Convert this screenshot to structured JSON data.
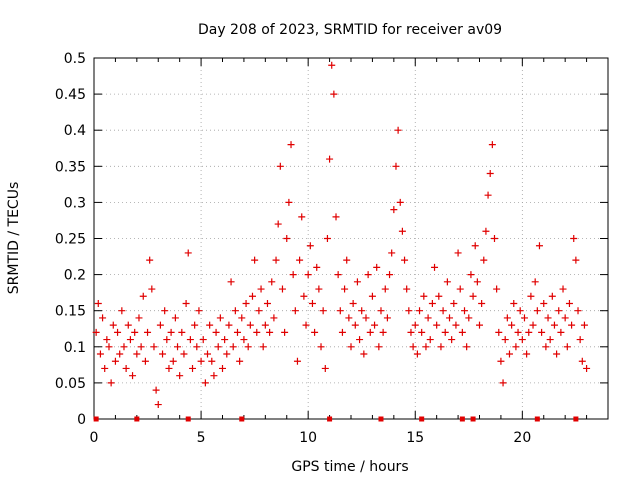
{
  "chart_data": {
    "type": "scatter",
    "title": "Day 208 of 2023, SRMTID for receiver av09",
    "xlabel": "GPS time / hours",
    "ylabel": "SRMTID / TECUs",
    "xlim": [
      0,
      24
    ],
    "ylim": [
      0,
      0.5
    ],
    "xticks": [
      0,
      5,
      10,
      15,
      20
    ],
    "xtick_labels": [
      "0",
      "5",
      "10",
      "15",
      "20"
    ],
    "yticks": [
      0,
      0.05,
      0.1,
      0.15,
      0.2,
      0.25,
      0.3,
      0.35,
      0.4,
      0.45,
      0.5
    ],
    "ytick_labels": [
      "0",
      "0.05",
      "0.1",
      "0.15",
      "0.2",
      "0.25",
      "0.3",
      "0.35",
      "0.4",
      "0.45",
      "0.5"
    ],
    "grid": true,
    "marker": "+",
    "color": "#e00000",
    "series": [
      {
        "name": "SRMTID",
        "points": [
          [
            0.1,
            0.12
          ],
          [
            0.2,
            0.16
          ],
          [
            0.3,
            0.09
          ],
          [
            0.4,
            0.14
          ],
          [
            0.5,
            0.07
          ],
          [
            0.6,
            0.11
          ],
          [
            0.7,
            0.1
          ],
          [
            0.8,
            0.05
          ],
          [
            0.9,
            0.13
          ],
          [
            1.0,
            0.08
          ],
          [
            1.1,
            0.12
          ],
          [
            1.2,
            0.09
          ],
          [
            1.3,
            0.15
          ],
          [
            1.4,
            0.1
          ],
          [
            1.5,
            0.07
          ],
          [
            1.6,
            0.13
          ],
          [
            1.7,
            0.11
          ],
          [
            1.8,
            0.06
          ],
          [
            1.9,
            0.12
          ],
          [
            2.0,
            0.09
          ],
          [
            2.1,
            0.14
          ],
          [
            2.2,
            0.1
          ],
          [
            2.3,
            0.17
          ],
          [
            2.4,
            0.08
          ],
          [
            2.5,
            0.12
          ],
          [
            2.6,
            0.22
          ],
          [
            2.7,
            0.18
          ],
          [
            2.8,
            0.1
          ],
          [
            2.9,
            0.04
          ],
          [
            3.0,
            0.02
          ],
          [
            3.1,
            0.13
          ],
          [
            3.2,
            0.09
          ],
          [
            3.3,
            0.15
          ],
          [
            3.4,
            0.11
          ],
          [
            3.5,
            0.07
          ],
          [
            3.6,
            0.12
          ],
          [
            3.7,
            0.08
          ],
          [
            3.8,
            0.14
          ],
          [
            3.9,
            0.1
          ],
          [
            4.0,
            0.06
          ],
          [
            4.1,
            0.12
          ],
          [
            4.2,
            0.09
          ],
          [
            4.3,
            0.16
          ],
          [
            4.4,
            0.23
          ],
          [
            4.5,
            0.11
          ],
          [
            4.6,
            0.07
          ],
          [
            4.7,
            0.13
          ],
          [
            4.8,
            0.1
          ],
          [
            4.9,
            0.15
          ],
          [
            5.0,
            0.08
          ],
          [
            5.1,
            0.11
          ],
          [
            5.2,
            0.05
          ],
          [
            5.3,
            0.09
          ],
          [
            5.4,
            0.13
          ],
          [
            5.5,
            0.08
          ],
          [
            5.6,
            0.06
          ],
          [
            5.7,
            0.12
          ],
          [
            5.8,
            0.1
          ],
          [
            5.9,
            0.14
          ],
          [
            6.0,
            0.07
          ],
          [
            6.1,
            0.11
          ],
          [
            6.2,
            0.09
          ],
          [
            6.3,
            0.13
          ],
          [
            6.4,
            0.19
          ],
          [
            6.5,
            0.1
          ],
          [
            6.6,
            0.15
          ],
          [
            6.7,
            0.12
          ],
          [
            6.8,
            0.08
          ],
          [
            6.9,
            0.14
          ],
          [
            7.0,
            0.11
          ],
          [
            7.1,
            0.16
          ],
          [
            7.2,
            0.1
          ],
          [
            7.3,
            0.13
          ],
          [
            7.4,
            0.17
          ],
          [
            7.5,
            0.22
          ],
          [
            7.6,
            0.12
          ],
          [
            7.7,
            0.15
          ],
          [
            7.8,
            0.18
          ],
          [
            7.9,
            0.1
          ],
          [
            8.0,
            0.13
          ],
          [
            8.1,
            0.16
          ],
          [
            8.2,
            0.12
          ],
          [
            8.3,
            0.19
          ],
          [
            8.4,
            0.14
          ],
          [
            8.5,
            0.22
          ],
          [
            8.6,
            0.27
          ],
          [
            8.7,
            0.35
          ],
          [
            8.8,
            0.18
          ],
          [
            8.9,
            0.12
          ],
          [
            9.0,
            0.25
          ],
          [
            9.1,
            0.3
          ],
          [
            9.2,
            0.38
          ],
          [
            9.3,
            0.2
          ],
          [
            9.4,
            0.15
          ],
          [
            9.5,
            0.08
          ],
          [
            9.6,
            0.22
          ],
          [
            9.7,
            0.28
          ],
          [
            9.8,
            0.17
          ],
          [
            9.9,
            0.13
          ],
          [
            10.0,
            0.2
          ],
          [
            10.1,
            0.24
          ],
          [
            10.2,
            0.16
          ],
          [
            10.3,
            0.12
          ],
          [
            10.4,
            0.21
          ],
          [
            10.5,
            0.18
          ],
          [
            10.6,
            0.1
          ],
          [
            10.7,
            0.15
          ],
          [
            10.8,
            0.07
          ],
          [
            10.9,
            0.25
          ],
          [
            11.0,
            0.36
          ],
          [
            11.1,
            0.49
          ],
          [
            11.2,
            0.45
          ],
          [
            11.3,
            0.28
          ],
          [
            11.4,
            0.2
          ],
          [
            11.5,
            0.15
          ],
          [
            11.6,
            0.12
          ],
          [
            11.7,
            0.18
          ],
          [
            11.8,
            0.22
          ],
          [
            11.9,
            0.14
          ],
          [
            12.0,
            0.1
          ],
          [
            12.1,
            0.16
          ],
          [
            12.2,
            0.13
          ],
          [
            12.3,
            0.19
          ],
          [
            12.4,
            0.11
          ],
          [
            12.5,
            0.15
          ],
          [
            12.6,
            0.09
          ],
          [
            12.7,
            0.14
          ],
          [
            12.8,
            0.2
          ],
          [
            12.9,
            0.12
          ],
          [
            13.0,
            0.17
          ],
          [
            13.1,
            0.13
          ],
          [
            13.2,
            0.21
          ],
          [
            13.3,
            0.1
          ],
          [
            13.4,
            0.15
          ],
          [
            13.5,
            0.12
          ],
          [
            13.6,
            0.18
          ],
          [
            13.7,
            0.14
          ],
          [
            13.8,
            0.2
          ],
          [
            13.9,
            0.23
          ],
          [
            14.0,
            0.29
          ],
          [
            14.1,
            0.35
          ],
          [
            14.2,
            0.4
          ],
          [
            14.3,
            0.3
          ],
          [
            14.4,
            0.26
          ],
          [
            14.5,
            0.22
          ],
          [
            14.6,
            0.18
          ],
          [
            14.7,
            0.15
          ],
          [
            14.8,
            0.12
          ],
          [
            14.9,
            0.1
          ],
          [
            15.0,
            0.13
          ],
          [
            15.1,
            0.09
          ],
          [
            15.2,
            0.15
          ],
          [
            15.3,
            0.12
          ],
          [
            15.4,
            0.17
          ],
          [
            15.5,
            0.1
          ],
          [
            15.6,
            0.14
          ],
          [
            15.7,
            0.11
          ],
          [
            15.8,
            0.16
          ],
          [
            15.9,
            0.21
          ],
          [
            16.0,
            0.13
          ],
          [
            16.1,
            0.17
          ],
          [
            16.2,
            0.1
          ],
          [
            16.3,
            0.15
          ],
          [
            16.4,
            0.12
          ],
          [
            16.5,
            0.19
          ],
          [
            16.6,
            0.14
          ],
          [
            16.7,
            0.11
          ],
          [
            16.8,
            0.16
          ],
          [
            16.9,
            0.13
          ],
          [
            17.0,
            0.23
          ],
          [
            17.1,
            0.18
          ],
          [
            17.2,
            0.12
          ],
          [
            17.3,
            0.15
          ],
          [
            17.4,
            0.1
          ],
          [
            17.5,
            0.14
          ],
          [
            17.6,
            0.2
          ],
          [
            17.7,
            0.17
          ],
          [
            17.8,
            0.24
          ],
          [
            17.9,
            0.19
          ],
          [
            18.0,
            0.13
          ],
          [
            18.1,
            0.16
          ],
          [
            18.2,
            0.22
          ],
          [
            18.3,
            0.26
          ],
          [
            18.4,
            0.31
          ],
          [
            18.5,
            0.34
          ],
          [
            18.6,
            0.38
          ],
          [
            18.7,
            0.25
          ],
          [
            18.8,
            0.18
          ],
          [
            18.9,
            0.12
          ],
          [
            19.0,
            0.08
          ],
          [
            19.1,
            0.05
          ],
          [
            19.2,
            0.11
          ],
          [
            19.3,
            0.14
          ],
          [
            19.4,
            0.09
          ],
          [
            19.5,
            0.13
          ],
          [
            19.6,
            0.16
          ],
          [
            19.7,
            0.1
          ],
          [
            19.8,
            0.12
          ],
          [
            19.9,
            0.15
          ],
          [
            20.0,
            0.11
          ],
          [
            20.1,
            0.14
          ],
          [
            20.2,
            0.09
          ],
          [
            20.3,
            0.12
          ],
          [
            20.4,
            0.17
          ],
          [
            20.5,
            0.13
          ],
          [
            20.6,
            0.19
          ],
          [
            20.7,
            0.15
          ],
          [
            20.8,
            0.24
          ],
          [
            20.9,
            0.12
          ],
          [
            21.0,
            0.16
          ],
          [
            21.1,
            0.1
          ],
          [
            21.2,
            0.14
          ],
          [
            21.3,
            0.11
          ],
          [
            21.4,
            0.17
          ],
          [
            21.5,
            0.13
          ],
          [
            21.6,
            0.09
          ],
          [
            21.7,
            0.15
          ],
          [
            21.8,
            0.12
          ],
          [
            21.9,
            0.18
          ],
          [
            22.0,
            0.14
          ],
          [
            22.1,
            0.1
          ],
          [
            22.2,
            0.16
          ],
          [
            22.3,
            0.13
          ],
          [
            22.4,
            0.25
          ],
          [
            22.5,
            0.22
          ],
          [
            22.6,
            0.15
          ],
          [
            22.7,
            0.11
          ],
          [
            22.8,
            0.08
          ],
          [
            22.9,
            0.13
          ],
          [
            23.0,
            0.07
          ]
        ]
      }
    ],
    "zero_points_x": [
      0.1,
      2.0,
      4.4,
      6.9,
      11.0,
      13.4,
      15.3,
      17.2,
      17.7,
      20.7,
      22.5
    ]
  }
}
